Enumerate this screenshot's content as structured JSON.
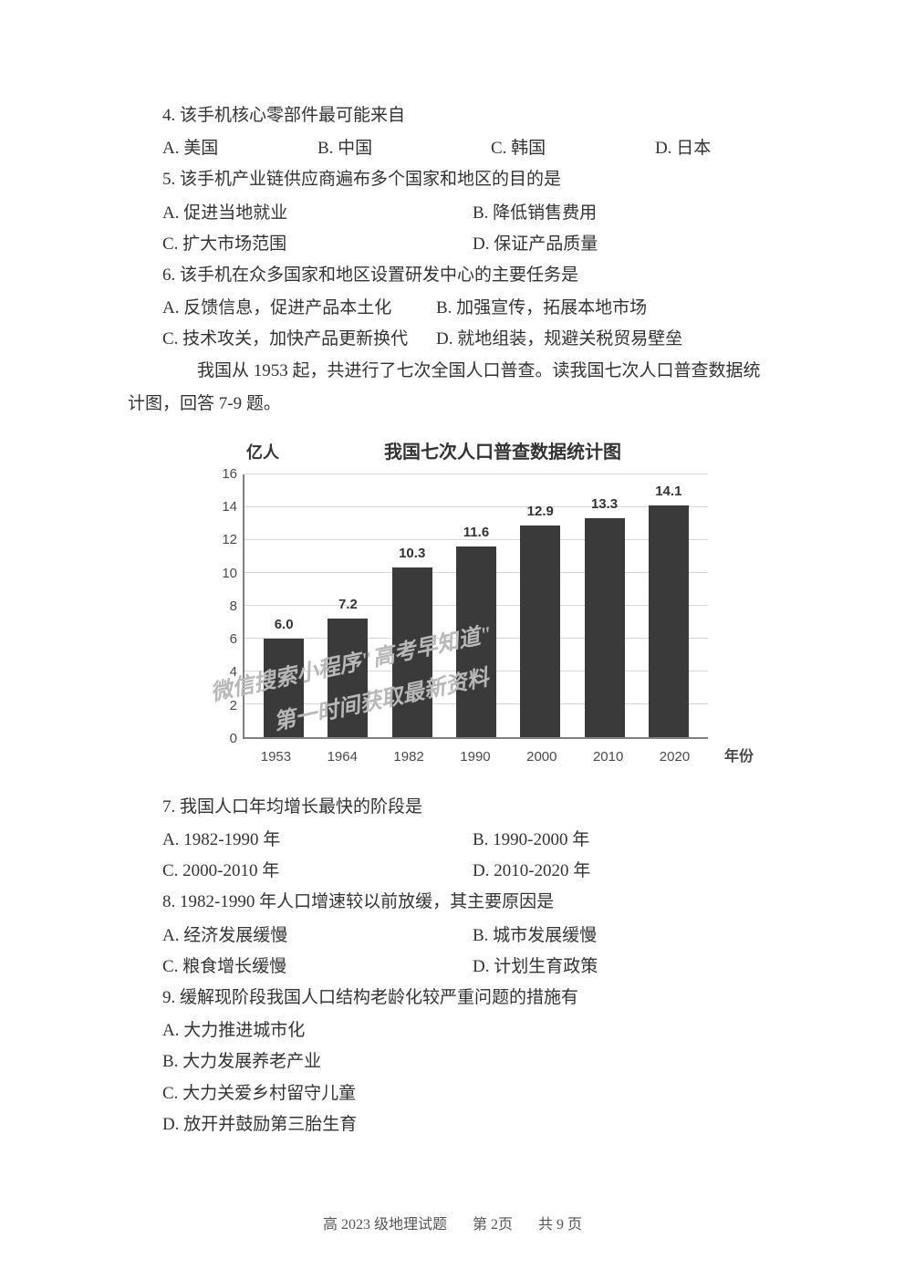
{
  "q4": {
    "stem": "4. 该手机核心零部件最可能来自",
    "opts": {
      "A": "A. 美国",
      "B": "B. 中国",
      "C": "C. 韩国",
      "D": "D. 日本"
    }
  },
  "q5": {
    "stem": "5. 该手机产业链供应商遍布多个国家和地区的目的是",
    "opts": {
      "A": "A. 促进当地就业",
      "B": "B. 降低销售费用",
      "C": "C. 扩大市场范围",
      "D": "D. 保证产品质量"
    }
  },
  "q6": {
    "stem": "6. 该手机在众多国家和地区设置研发中心的主要任务是",
    "opts": {
      "A": "A. 反馈信息，促进产品本土化",
      "B": "B. 加强宣传，拓展本地市场",
      "C": "C. 技术攻关，加快产品更新换代",
      "D": "D. 就地组装，规避关税贸易壁垒"
    }
  },
  "passage": {
    "line1": "我国从 1953 起，共进行了七次全国人口普查。读我国七次人口普查数据统",
    "line2": "计图，回答 7-9 题。"
  },
  "chart": {
    "type": "bar",
    "title": "我国七次人口普查数据统计图",
    "y_unit": "亿人",
    "x_label": "年份",
    "ylim": [
      0,
      16
    ],
    "ytick_step": 2,
    "yticks": [
      "16",
      "14",
      "12",
      "10",
      "8",
      "6",
      "4",
      "2",
      "0"
    ],
    "categories": [
      "1953",
      "1964",
      "1982",
      "1990",
      "2000",
      "2010",
      "2020"
    ],
    "values": [
      6.0,
      7.2,
      10.3,
      11.6,
      12.9,
      13.3,
      14.1
    ],
    "value_labels": [
      "6.0",
      "7.2",
      "10.3",
      "11.6",
      "12.9",
      "13.3",
      "14.1"
    ],
    "bar_color": "#3a3a3a",
    "grid_color": "#d8d8d8",
    "axis_color": "#808080",
    "background_color": "#ffffff",
    "tick_fontsize": 15,
    "title_fontsize": 20,
    "value_fontsize": 15
  },
  "watermark": {
    "line1": "微信搜索小程序\"高考早知道\"",
    "line2": "第一时间获取最新资料"
  },
  "q7": {
    "stem": "7. 我国人口年均增长最快的阶段是",
    "opts": {
      "A": "A. 1982-1990 年",
      "B": "B. 1990-2000 年",
      "C": "C. 2000-2010 年",
      "D": "D. 2010-2020 年"
    }
  },
  "q8": {
    "stem": "8. 1982-1990 年人口增速较以前放缓，其主要原因是",
    "opts": {
      "A": "A. 经济发展缓慢",
      "B": "B. 城市发展缓慢",
      "C": "C. 粮食增长缓慢",
      "D": "D. 计划生育政策"
    }
  },
  "q9": {
    "stem": "9. 缓解现阶段我国人口结构老龄化较严重问题的措施有",
    "opts": {
      "A": "A. 大力推进城市化",
      "B": "B. 大力发展养老产业",
      "C": "C. 大力关爱乡村留守儿童",
      "D": "D. 放开并鼓励第三胎生育"
    }
  },
  "footer": {
    "left": "高 2023 级地理试题",
    "mid": "第 2页",
    "right": "共 9 页"
  }
}
